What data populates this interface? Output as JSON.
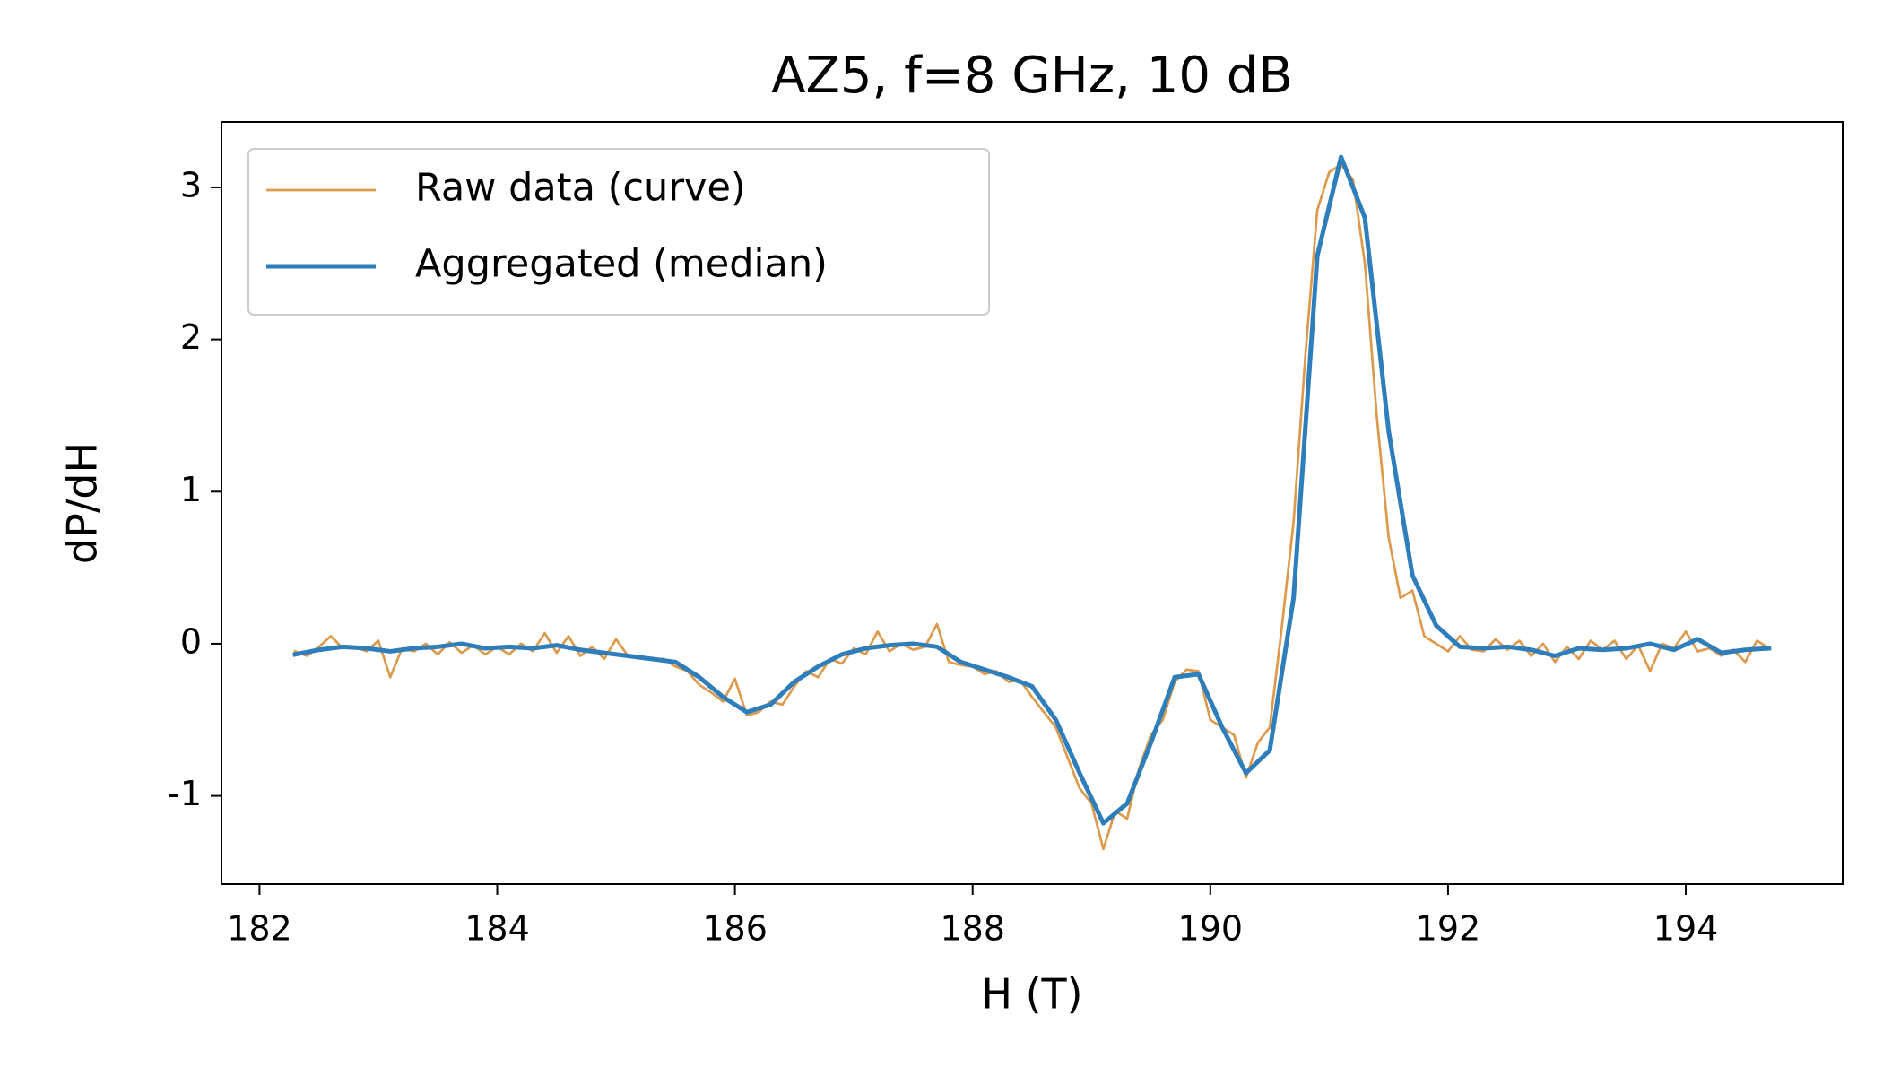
{
  "chart_data": {
    "type": "line",
    "title": "AZ5, f=8 GHz, 10 dB",
    "xlabel": "H (T)",
    "ylabel": "dP/dH",
    "xlim": [
      181.68,
      195.32
    ],
    "ylim": [
      -1.58,
      3.43
    ],
    "xticks": [
      182,
      184,
      186,
      188,
      190,
      192,
      194
    ],
    "yticks": [
      -1,
      0,
      1,
      2,
      3
    ],
    "legend": "upper left",
    "series": [
      {
        "name": "Raw data (curve)",
        "color": "#dd9a4c",
        "width": 2.7,
        "x": [
          182.3,
          182.4,
          182.5,
          182.6,
          182.7,
          182.8,
          182.9,
          183.0,
          183.1,
          183.2,
          183.3,
          183.4,
          183.5,
          183.6,
          183.7,
          183.8,
          183.9,
          184.0,
          184.1,
          184.2,
          184.3,
          184.4,
          184.5,
          184.6,
          184.7,
          184.8,
          184.9,
          185.0,
          185.1,
          185.2,
          185.3,
          185.4,
          185.5,
          185.6,
          185.7,
          185.8,
          185.9,
          186.0,
          186.1,
          186.2,
          186.3,
          186.4,
          186.5,
          186.6,
          186.7,
          186.8,
          186.9,
          187.0,
          187.1,
          187.2,
          187.3,
          187.4,
          187.5,
          187.6,
          187.7,
          187.8,
          187.9,
          188.0,
          188.1,
          188.2,
          188.3,
          188.4,
          188.5,
          188.6,
          188.7,
          188.8,
          188.9,
          189.0,
          189.1,
          189.2,
          189.3,
          189.4,
          189.5,
          189.6,
          189.7,
          189.8,
          189.9,
          190.0,
          190.1,
          190.2,
          190.3,
          190.4,
          190.5,
          190.6,
          190.7,
          190.8,
          190.9,
          191.0,
          191.1,
          191.2,
          191.3,
          191.4,
          191.5,
          191.6,
          191.7,
          191.8,
          191.9,
          192.0,
          192.1,
          192.2,
          192.3,
          192.4,
          192.5,
          192.6,
          192.7,
          192.8,
          192.9,
          193.0,
          193.1,
          193.2,
          193.3,
          193.4,
          193.5,
          193.6,
          193.7,
          193.8,
          193.9,
          194.0,
          194.1,
          194.2,
          194.3,
          194.4,
          194.5,
          194.6,
          194.7
        ],
        "values": [
          -0.05,
          -0.08,
          -0.02,
          0.05,
          -0.03,
          -0.02,
          -0.05,
          0.02,
          -0.22,
          -0.03,
          -0.05,
          0.0,
          -0.07,
          0.01,
          -0.06,
          -0.01,
          -0.07,
          -0.02,
          -0.07,
          0.0,
          -0.05,
          0.07,
          -0.06,
          0.05,
          -0.08,
          -0.02,
          -0.1,
          0.03,
          -0.08,
          -0.08,
          -0.1,
          -0.1,
          -0.15,
          -0.18,
          -0.27,
          -0.32,
          -0.38,
          -0.23,
          -0.47,
          -0.45,
          -0.38,
          -0.4,
          -0.28,
          -0.18,
          -0.22,
          -0.1,
          -0.13,
          -0.03,
          -0.07,
          0.08,
          -0.05,
          0.0,
          -0.04,
          -0.02,
          0.13,
          -0.12,
          -0.14,
          -0.15,
          -0.2,
          -0.18,
          -0.25,
          -0.24,
          -0.35,
          -0.45,
          -0.55,
          -0.75,
          -0.95,
          -1.05,
          -1.35,
          -1.1,
          -1.15,
          -0.82,
          -0.6,
          -0.5,
          -0.25,
          -0.17,
          -0.18,
          -0.5,
          -0.55,
          -0.6,
          -0.88,
          -0.65,
          -0.55,
          0.1,
          0.8,
          1.9,
          2.85,
          3.1,
          3.15,
          3.05,
          2.5,
          1.5,
          0.7,
          0.3,
          0.35,
          0.05,
          0.0,
          -0.05,
          0.05,
          -0.04,
          -0.05,
          0.03,
          -0.04,
          0.02,
          -0.08,
          0.0,
          -0.12,
          -0.02,
          -0.1,
          0.02,
          -0.04,
          0.02,
          -0.1,
          -0.01,
          -0.18,
          0.0,
          -0.03,
          0.08,
          -0.05,
          -0.03,
          -0.08,
          -0.04,
          -0.12,
          0.02,
          -0.03
        ]
      },
      {
        "name": "Aggregated (median)",
        "color": "#2e7ebb",
        "width": 5,
        "x": [
          182.3,
          182.5,
          182.7,
          182.9,
          183.1,
          183.3,
          183.5,
          183.7,
          183.9,
          184.1,
          184.3,
          184.5,
          184.7,
          184.9,
          185.1,
          185.3,
          185.5,
          185.7,
          185.9,
          186.1,
          186.3,
          186.5,
          186.7,
          186.9,
          187.1,
          187.3,
          187.5,
          187.7,
          187.9,
          188.1,
          188.3,
          188.5,
          188.7,
          188.9,
          189.1,
          189.3,
          189.5,
          189.7,
          189.9,
          190.1,
          190.3,
          190.5,
          190.7,
          190.9,
          191.1,
          191.3,
          191.5,
          191.7,
          191.9,
          192.1,
          192.3,
          192.5,
          192.7,
          192.9,
          193.1,
          193.3,
          193.5,
          193.7,
          193.9,
          194.1,
          194.3,
          194.5,
          194.7
        ],
        "values": [
          -0.07,
          -0.04,
          -0.02,
          -0.03,
          -0.05,
          -0.03,
          -0.02,
          0.0,
          -0.03,
          -0.02,
          -0.03,
          -0.01,
          -0.04,
          -0.06,
          -0.08,
          -0.1,
          -0.12,
          -0.22,
          -0.35,
          -0.45,
          -0.4,
          -0.25,
          -0.15,
          -0.07,
          -0.03,
          -0.01,
          0.0,
          -0.02,
          -0.12,
          -0.17,
          -0.22,
          -0.28,
          -0.5,
          -0.85,
          -1.18,
          -1.05,
          -0.65,
          -0.22,
          -0.2,
          -0.55,
          -0.85,
          -0.7,
          0.3,
          2.55,
          3.2,
          2.8,
          1.4,
          0.45,
          0.12,
          -0.02,
          -0.03,
          -0.02,
          -0.04,
          -0.08,
          -0.03,
          -0.04,
          -0.03,
          0.0,
          -0.04,
          0.03,
          -0.06,
          -0.04,
          -0.03
        ]
      }
    ]
  }
}
